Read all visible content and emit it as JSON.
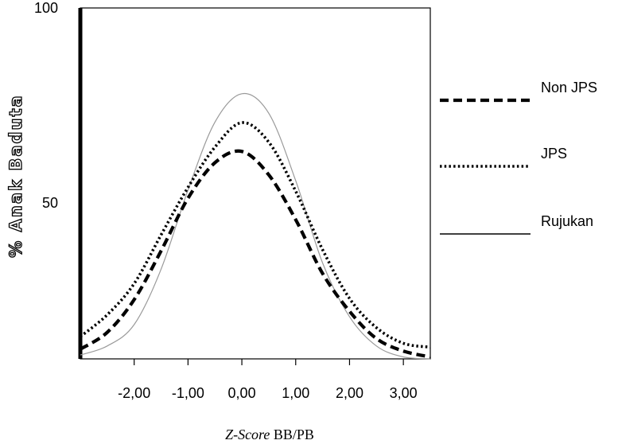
{
  "chart_data": {
    "type": "line",
    "title": "",
    "xlabel_italic": "Z-Score",
    "xlabel_rest": " BB/PB",
    "ylabel": "% Anak Baduta",
    "xlim": [
      -3.0,
      3.5
    ],
    "ylim": [
      10,
      100
    ],
    "x_ticks": [
      -2.0,
      -1.0,
      0.0,
      1.0,
      2.0,
      3.0
    ],
    "x_tick_labels": [
      "-2,00",
      "-1,00",
      "0,00",
      "1,00",
      "2,00",
      "3,00"
    ],
    "y_ticks": [
      50,
      100
    ],
    "y_tick_labels": [
      "50",
      "100"
    ],
    "grid": false,
    "legend_position": "right",
    "x": [
      -3.0,
      -2.5,
      -2.0,
      -1.5,
      -1.0,
      -0.5,
      0.0,
      0.5,
      1.0,
      1.5,
      2.0,
      2.5,
      3.0,
      3.5
    ],
    "series": [
      {
        "name": "Non JPS",
        "style": "dashed",
        "color": "#000000",
        "values": [
          12.5,
          16.8,
          25.2,
          37.7,
          51.2,
          60.3,
          63.2,
          57.2,
          45.7,
          31.9,
          22.2,
          15.2,
          12.0,
          10.5
        ]
      },
      {
        "name": "JPS",
        "style": "dotted",
        "color": "#000000",
        "values": [
          15.7,
          21.3,
          29.3,
          41.8,
          54.0,
          64.3,
          70.6,
          65.6,
          53.0,
          38.0,
          25.5,
          18.0,
          14.0,
          13.0
        ]
      },
      {
        "name": "Rujukan",
        "style": "solid",
        "color": "#9a9a9a",
        "values": [
          11.0,
          13.3,
          18.8,
          33.0,
          53.3,
          70.7,
          78.0,
          73.0,
          55.7,
          34.6,
          20.8,
          13.3,
          10.5,
          10.0
        ]
      }
    ]
  }
}
